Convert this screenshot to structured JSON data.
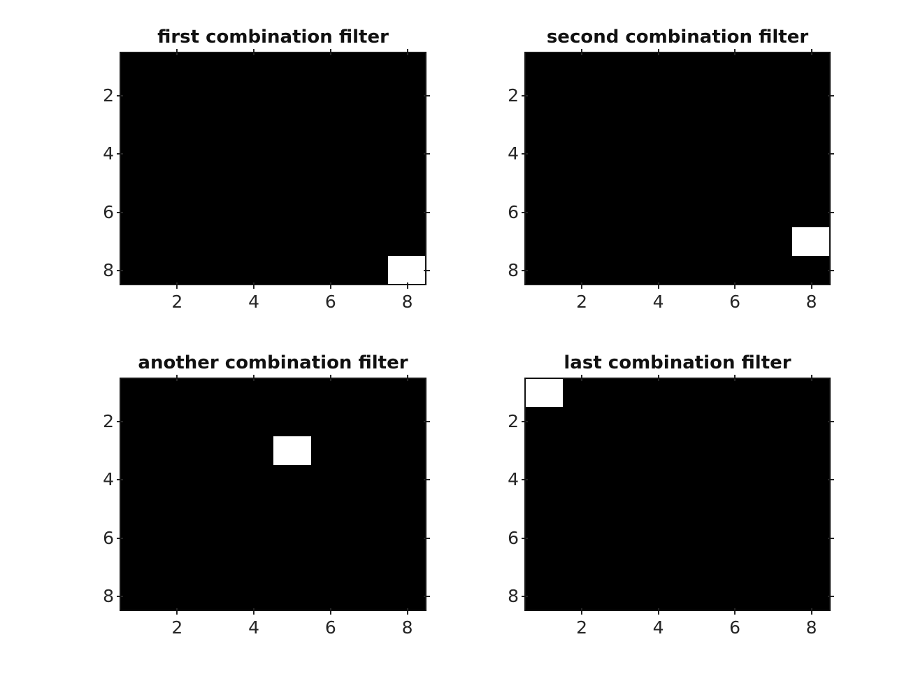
{
  "figure": {
    "background_color": "#ffffff",
    "panel_background_color": "#000000",
    "active_cell_color": "#ffffff",
    "axes_box_color": "#131313",
    "tick_label_color": "#262626",
    "title_color": "#111111"
  },
  "chart_data": [
    {
      "type": "heatmap",
      "title": "first combination filter",
      "colormap": "gray",
      "grid": {
        "rows": 8,
        "cols": 8
      },
      "xlim": [
        0.5,
        8.5
      ],
      "ylim": [
        0.5,
        8.5
      ],
      "y_axis_reversed": true,
      "xticks": [
        2,
        4,
        6,
        8
      ],
      "yticks": [
        2,
        4,
        6,
        8
      ],
      "active_cell": {
        "row": 8,
        "col": 8,
        "value": 1
      },
      "matrix": [
        [
          0,
          0,
          0,
          0,
          0,
          0,
          0,
          0
        ],
        [
          0,
          0,
          0,
          0,
          0,
          0,
          0,
          0
        ],
        [
          0,
          0,
          0,
          0,
          0,
          0,
          0,
          0
        ],
        [
          0,
          0,
          0,
          0,
          0,
          0,
          0,
          0
        ],
        [
          0,
          0,
          0,
          0,
          0,
          0,
          0,
          0
        ],
        [
          0,
          0,
          0,
          0,
          0,
          0,
          0,
          0
        ],
        [
          0,
          0,
          0,
          0,
          0,
          0,
          0,
          0
        ],
        [
          0,
          0,
          0,
          0,
          0,
          0,
          0,
          1
        ]
      ]
    },
    {
      "type": "heatmap",
      "title": "second combination filter",
      "colormap": "gray",
      "grid": {
        "rows": 8,
        "cols": 8
      },
      "xlim": [
        0.5,
        8.5
      ],
      "ylim": [
        0.5,
        8.5
      ],
      "y_axis_reversed": true,
      "xticks": [
        2,
        4,
        6,
        8
      ],
      "yticks": [
        2,
        4,
        6,
        8
      ],
      "active_cell": {
        "row": 7,
        "col": 8,
        "value": 1
      },
      "matrix": [
        [
          0,
          0,
          0,
          0,
          0,
          0,
          0,
          0
        ],
        [
          0,
          0,
          0,
          0,
          0,
          0,
          0,
          0
        ],
        [
          0,
          0,
          0,
          0,
          0,
          0,
          0,
          0
        ],
        [
          0,
          0,
          0,
          0,
          0,
          0,
          0,
          0
        ],
        [
          0,
          0,
          0,
          0,
          0,
          0,
          0,
          0
        ],
        [
          0,
          0,
          0,
          0,
          0,
          0,
          0,
          0
        ],
        [
          0,
          0,
          0,
          0,
          0,
          0,
          0,
          1
        ],
        [
          0,
          0,
          0,
          0,
          0,
          0,
          0,
          0
        ]
      ]
    },
    {
      "type": "heatmap",
      "title": "another combination filter",
      "colormap": "gray",
      "grid": {
        "rows": 8,
        "cols": 8
      },
      "xlim": [
        0.5,
        8.5
      ],
      "ylim": [
        0.5,
        8.5
      ],
      "y_axis_reversed": true,
      "xticks": [
        2,
        4,
        6,
        8
      ],
      "yticks": [
        2,
        4,
        6,
        8
      ],
      "active_cell": {
        "row": 3,
        "col": 5,
        "value": 1
      },
      "matrix": [
        [
          0,
          0,
          0,
          0,
          0,
          0,
          0,
          0
        ],
        [
          0,
          0,
          0,
          0,
          0,
          0,
          0,
          0
        ],
        [
          0,
          0,
          0,
          0,
          1,
          0,
          0,
          0
        ],
        [
          0,
          0,
          0,
          0,
          0,
          0,
          0,
          0
        ],
        [
          0,
          0,
          0,
          0,
          0,
          0,
          0,
          0
        ],
        [
          0,
          0,
          0,
          0,
          0,
          0,
          0,
          0
        ],
        [
          0,
          0,
          0,
          0,
          0,
          0,
          0,
          0
        ],
        [
          0,
          0,
          0,
          0,
          0,
          0,
          0,
          0
        ]
      ]
    },
    {
      "type": "heatmap",
      "title": "last combination filter",
      "colormap": "gray",
      "grid": {
        "rows": 8,
        "cols": 8
      },
      "xlim": [
        0.5,
        8.5
      ],
      "ylim": [
        0.5,
        8.5
      ],
      "y_axis_reversed": true,
      "xticks": [
        2,
        4,
        6,
        8
      ],
      "yticks": [
        2,
        4,
        6,
        8
      ],
      "active_cell": {
        "row": 1,
        "col": 1,
        "value": 1
      },
      "matrix": [
        [
          1,
          0,
          0,
          0,
          0,
          0,
          0,
          0
        ],
        [
          0,
          0,
          0,
          0,
          0,
          0,
          0,
          0
        ],
        [
          0,
          0,
          0,
          0,
          0,
          0,
          0,
          0
        ],
        [
          0,
          0,
          0,
          0,
          0,
          0,
          0,
          0
        ],
        [
          0,
          0,
          0,
          0,
          0,
          0,
          0,
          0
        ],
        [
          0,
          0,
          0,
          0,
          0,
          0,
          0,
          0
        ],
        [
          0,
          0,
          0,
          0,
          0,
          0,
          0,
          0
        ],
        [
          0,
          0,
          0,
          0,
          0,
          0,
          0,
          0
        ]
      ]
    }
  ]
}
